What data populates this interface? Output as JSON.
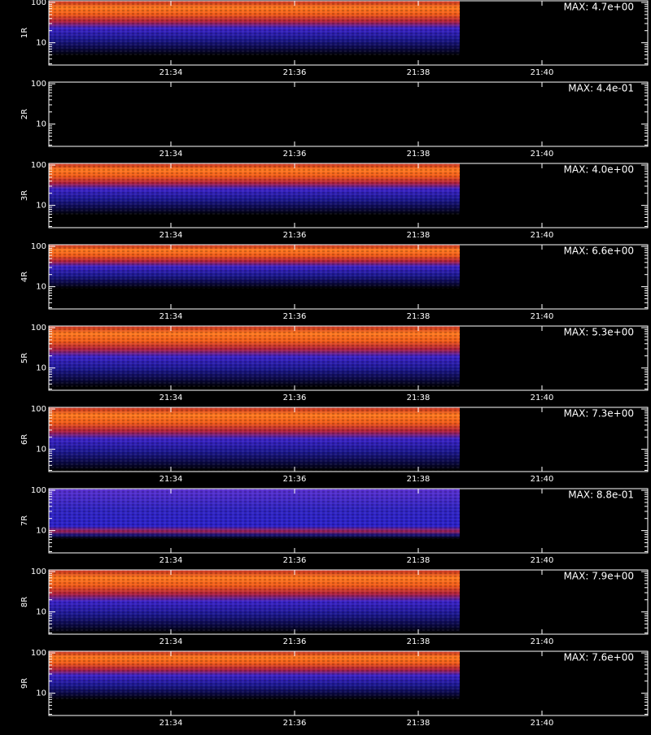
{
  "chart_data": [
    {
      "type": "heatmap",
      "ylabel": "1R",
      "annotation": "MAX: 4.7e+00",
      "ylim": [
        2.8,
        110
      ],
      "yticks": [
        10,
        100
      ],
      "yminorticks": [
        3,
        4,
        5,
        6,
        7,
        8,
        9,
        20,
        30,
        40,
        50,
        60,
        70,
        80,
        90
      ],
      "log_y": true,
      "xtick_labels": [
        "21:34",
        "21:36",
        "21:38",
        "21:40"
      ]
    },
    {
      "type": "heatmap",
      "ylabel": "2R",
      "annotation": "MAX: 4.4e-01",
      "ylim": [
        2.8,
        110
      ],
      "yticks": [
        10,
        100
      ],
      "yminorticks": [
        3,
        4,
        5,
        6,
        7,
        8,
        9,
        20,
        30,
        40,
        50,
        60,
        70,
        80,
        90
      ],
      "log_y": true,
      "xtick_labels": [
        "21:34",
        "21:36",
        "21:38",
        "21:40"
      ]
    },
    {
      "type": "heatmap",
      "ylabel": "3R",
      "annotation": "MAX: 4.0e+00",
      "ylim": [
        2.8,
        110
      ],
      "yticks": [
        10,
        100
      ],
      "yminorticks": [
        3,
        4,
        5,
        6,
        7,
        8,
        9,
        20,
        30,
        40,
        50,
        60,
        70,
        80,
        90
      ],
      "log_y": true,
      "xtick_labels": [
        "21:34",
        "21:36",
        "21:38",
        "21:40"
      ]
    },
    {
      "type": "heatmap",
      "ylabel": "4R",
      "annotation": "MAX: 6.6e+00",
      "ylim": [
        2.8,
        110
      ],
      "yticks": [
        10,
        100
      ],
      "yminorticks": [
        3,
        4,
        5,
        6,
        7,
        8,
        9,
        20,
        30,
        40,
        50,
        60,
        70,
        80,
        90
      ],
      "log_y": true,
      "xtick_labels": [
        "21:34",
        "21:36",
        "21:38",
        "21:40"
      ]
    },
    {
      "type": "heatmap",
      "ylabel": "5R",
      "annotation": "MAX: 5.3e+00",
      "ylim": [
        2.8,
        110
      ],
      "yticks": [
        10,
        100
      ],
      "yminorticks": [
        3,
        4,
        5,
        6,
        7,
        8,
        9,
        20,
        30,
        40,
        50,
        60,
        70,
        80,
        90
      ],
      "log_y": true,
      "xtick_labels": [
        "21:34",
        "21:36",
        "21:38",
        "21:40"
      ]
    },
    {
      "type": "heatmap",
      "ylabel": "6R",
      "annotation": "MAX: 7.3e+00",
      "ylim": [
        2.8,
        110
      ],
      "yticks": [
        10,
        100
      ],
      "yminorticks": [
        3,
        4,
        5,
        6,
        7,
        8,
        9,
        20,
        30,
        40,
        50,
        60,
        70,
        80,
        90
      ],
      "log_y": true,
      "xtick_labels": [
        "21:34",
        "21:36",
        "21:38",
        "21:40"
      ]
    },
    {
      "type": "heatmap",
      "ylabel": "7R",
      "annotation": "MAX: 8.8e-01",
      "ylim": [
        2.8,
        110
      ],
      "yticks": [
        10,
        100
      ],
      "yminorticks": [
        3,
        4,
        5,
        6,
        7,
        8,
        9,
        20,
        30,
        40,
        50,
        60,
        70,
        80,
        90
      ],
      "log_y": true,
      "xtick_labels": [
        "21:34",
        "21:36",
        "21:38",
        "21:40"
      ]
    },
    {
      "type": "heatmap",
      "ylabel": "8R",
      "annotation": "MAX: 7.9e+00",
      "ylim": [
        2.8,
        110
      ],
      "yticks": [
        10,
        100
      ],
      "yminorticks": [
        3,
        4,
        5,
        6,
        7,
        8,
        9,
        20,
        30,
        40,
        50,
        60,
        70,
        80,
        90
      ],
      "log_y": true,
      "xtick_labels": [
        "21:34",
        "21:36",
        "21:38",
        "21:40"
      ]
    },
    {
      "type": "heatmap",
      "ylabel": "9R",
      "annotation": "MAX: 7.6e+00",
      "ylim": [
        2.8,
        110
      ],
      "yticks": [
        10,
        100
      ],
      "yminorticks": [
        3,
        4,
        5,
        6,
        7,
        8,
        9,
        20,
        30,
        40,
        50,
        60,
        70,
        80,
        90
      ],
      "log_y": true,
      "xtick_labels": [
        "21:34",
        "21:36",
        "21:38",
        "21:40"
      ]
    }
  ]
}
